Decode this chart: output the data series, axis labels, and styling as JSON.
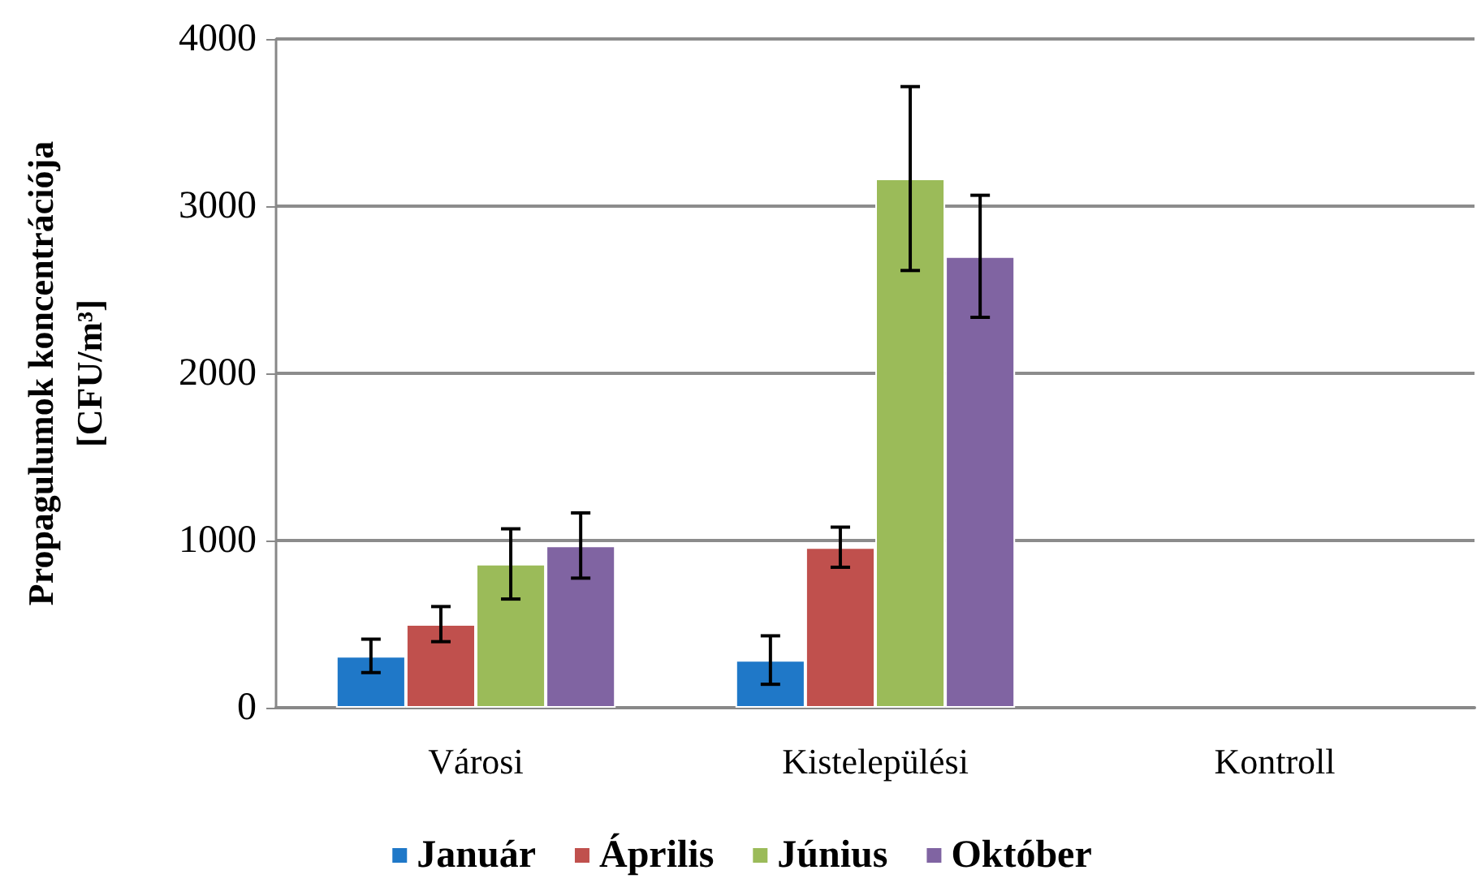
{
  "chart_data": {
    "type": "bar",
    "ylabel": "Propagulumok koncentrációja\n[CFU/m³]",
    "categories": [
      "Városi",
      "Kistelepülési",
      "Kontroll"
    ],
    "series": [
      {
        "name": "Január",
        "color": "#1f78c8",
        "values": [
          310,
          285,
          null
        ],
        "errors": [
          100,
          145,
          null
        ]
      },
      {
        "name": "Április",
        "color": "#c0504d",
        "values": [
          500,
          960,
          null
        ],
        "errors": [
          105,
          120,
          null
        ]
      },
      {
        "name": "Június",
        "color": "#9bbb59",
        "values": [
          860,
          3165,
          null
        ],
        "errors": [
          210,
          550,
          null
        ]
      },
      {
        "name": "Október",
        "color": "#8064a2",
        "values": [
          970,
          2700,
          null
        ],
        "errors": [
          195,
          365,
          null
        ]
      }
    ],
    "ylim": [
      0,
      4000
    ],
    "yticks": [
      0,
      1000,
      2000,
      3000,
      4000
    ],
    "grid": "y",
    "legend": "bottom"
  }
}
